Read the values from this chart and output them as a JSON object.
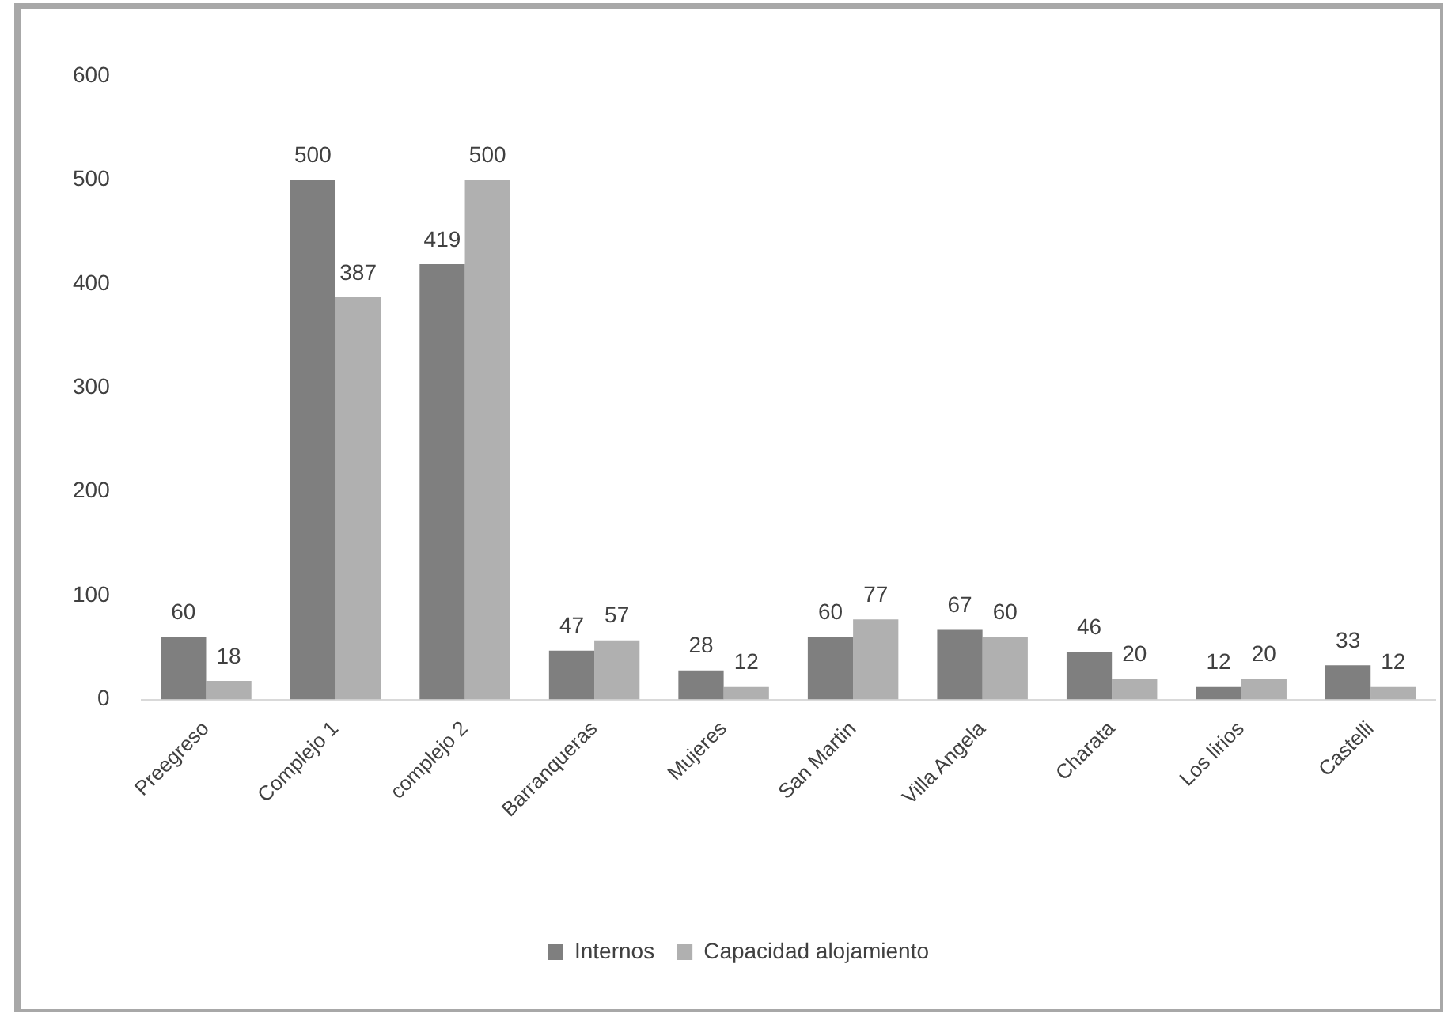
{
  "chart_data": {
    "type": "bar",
    "categories": [
      "Preegreso",
      "Complejo 1",
      "complejo 2",
      "Barranqueras",
      "Mujeres",
      "San Martin",
      "Villa Angela",
      "Charata",
      "Los lirios",
      "Castelli"
    ],
    "series": [
      {
        "name": "Internos",
        "color": "#7f7f7f",
        "values": [
          60,
          500,
          419,
          47,
          28,
          60,
          67,
          46,
          12,
          33
        ]
      },
      {
        "name": "Capacidad alojamiento",
        "color": "#b0b0b0",
        "values": [
          18,
          387,
          500,
          57,
          12,
          77,
          60,
          20,
          20,
          12
        ]
      }
    ],
    "ylim": [
      0,
      600
    ],
    "yticks": [
      0,
      100,
      200,
      300,
      400,
      500,
      600
    ],
    "grid": false,
    "legend": "bottom",
    "data_labels": true
  }
}
